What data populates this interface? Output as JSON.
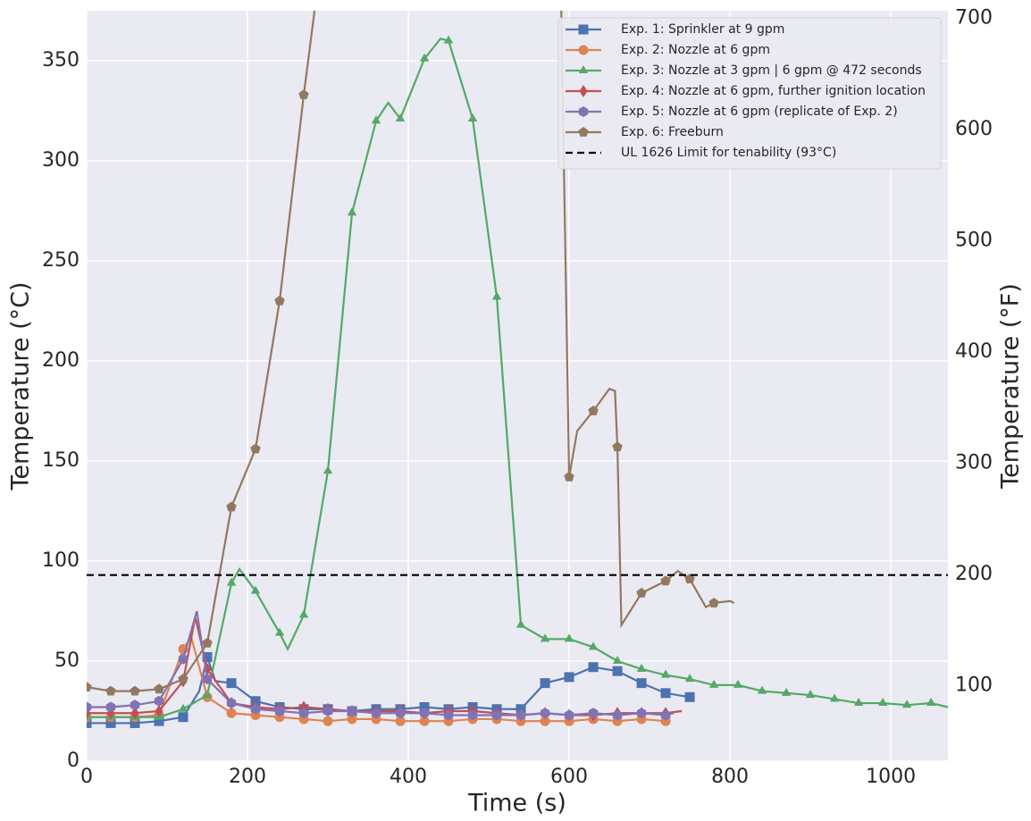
{
  "chart_data": {
    "type": "line",
    "xlabel": "Time (s)",
    "ylabel": "Temperature (°C)",
    "y2label": "Temperature (°F)",
    "xlim": [
      0,
      1071
    ],
    "ylim": [
      0,
      375
    ],
    "y2lim": [
      32,
      707
    ],
    "xticks": [
      0,
      200,
      400,
      600,
      800,
      1000
    ],
    "yticks": [
      0,
      50,
      100,
      150,
      200,
      250,
      300,
      350
    ],
    "y2ticks": [
      100,
      200,
      300,
      400,
      500,
      600,
      700
    ],
    "grid": true,
    "legend": "upper right",
    "series": [
      {
        "name": "Exp. 1: Sprinkler at 9 gpm",
        "color": "#4c72b0",
        "marker": "square",
        "x": [
          0,
          30,
          60,
          90,
          120,
          140,
          150,
          160,
          180,
          210,
          240,
          270,
          300,
          330,
          360,
          390,
          420,
          450,
          480,
          510,
          540,
          570,
          600,
          630,
          660,
          690,
          720,
          750
        ],
        "values": [
          19,
          19,
          19,
          20,
          22,
          35,
          52,
          40,
          39,
          30,
          27,
          26,
          26,
          25,
          26,
          26,
          27,
          26,
          27,
          26,
          26,
          39,
          42,
          47,
          45,
          39,
          34,
          32
        ]
      },
      {
        "name": "Exp. 2: Nozzle at 6 gpm",
        "color": "#dd8452",
        "marker": "circle",
        "x": [
          0,
          30,
          60,
          90,
          120,
          130,
          150,
          180,
          210,
          240,
          270,
          300,
          330,
          360,
          390,
          420,
          450,
          480,
          510,
          540,
          570,
          600,
          630,
          660,
          690,
          720
        ],
        "values": [
          22,
          22,
          22,
          23,
          56,
          62,
          32,
          24,
          23,
          22,
          21,
          20,
          21,
          21,
          20,
          20,
          20,
          21,
          21,
          20,
          20,
          20,
          21,
          20,
          21,
          20
        ]
      },
      {
        "name": "Exp. 3: Nozzle at 3 gpm | 6 gpm @ 472 seconds",
        "color": "#55a868",
        "marker": "triangle",
        "x": [
          0,
          30,
          60,
          90,
          120,
          150,
          180,
          190,
          210,
          240,
          250,
          270,
          300,
          330,
          360,
          375,
          390,
          420,
          440,
          450,
          480,
          510,
          540,
          570,
          600,
          630,
          660,
          690,
          720,
          750,
          780,
          810,
          840,
          870,
          900,
          930,
          960,
          990,
          1020,
          1050,
          1071
        ],
        "values": [
          22,
          22,
          22,
          22,
          26,
          33,
          89,
          96,
          85,
          64,
          56,
          73,
          145,
          274,
          320,
          329,
          321,
          351,
          361,
          360,
          321,
          232,
          68,
          61,
          61,
          57,
          50,
          46,
          43,
          41,
          38,
          38,
          35,
          34,
          33,
          31,
          29,
          29,
          28,
          29,
          27
        ]
      },
      {
        "name": "Exp. 4: Nozzle at 6 gpm, further ignition location",
        "color": "#c44e52",
        "marker": "diamond",
        "x": [
          0,
          30,
          60,
          90,
          120,
          135,
          150,
          180,
          210,
          240,
          270,
          300,
          330,
          360,
          390,
          420,
          450,
          480,
          510,
          540,
          570,
          600,
          630,
          660,
          690,
          720,
          740
        ],
        "values": [
          24,
          24,
          24,
          25,
          40,
          72,
          46,
          29,
          27,
          26,
          27,
          26,
          25,
          25,
          25,
          24,
          25,
          25,
          24,
          23,
          24,
          23,
          23,
          24,
          24,
          24,
          25
        ]
      },
      {
        "name": "Exp. 5: Nozzle at 6 gpm (replicate of Exp. 2)",
        "color": "#8172b3",
        "marker": "hexagon",
        "x": [
          0,
          30,
          60,
          90,
          120,
          137,
          150,
          180,
          210,
          240,
          270,
          300,
          330,
          360,
          390,
          420,
          450,
          480,
          510,
          540,
          570,
          600,
          630,
          660,
          690,
          720,
          730
        ],
        "values": [
          27,
          27,
          28,
          30,
          51,
          75,
          41,
          29,
          26,
          25,
          24,
          25,
          25,
          24,
          24,
          24,
          23,
          23,
          23,
          23,
          24,
          23,
          24,
          23,
          24,
          23,
          24
        ]
      },
      {
        "name": "Exp. 6: Freeburn",
        "color": "#937860",
        "marker": "pentagon",
        "x": [
          0,
          30,
          60,
          90,
          120,
          150,
          180,
          210,
          240,
          270,
          285,
          590,
          600,
          610,
          630,
          650,
          657,
          660,
          665,
          690,
          720,
          735,
          750,
          770,
          780,
          800,
          805
        ],
        "values": [
          37,
          35,
          35,
          36,
          41,
          59,
          127,
          156,
          230,
          333,
          380,
          380,
          142,
          165,
          175,
          186,
          185,
          157,
          68,
          84,
          90,
          95,
          91,
          77,
          79,
          80,
          79
        ]
      }
    ],
    "reference_line": {
      "name": "UL 1626 Limit for tenability (93°C)",
      "value": 93,
      "color": "#000000"
    }
  }
}
